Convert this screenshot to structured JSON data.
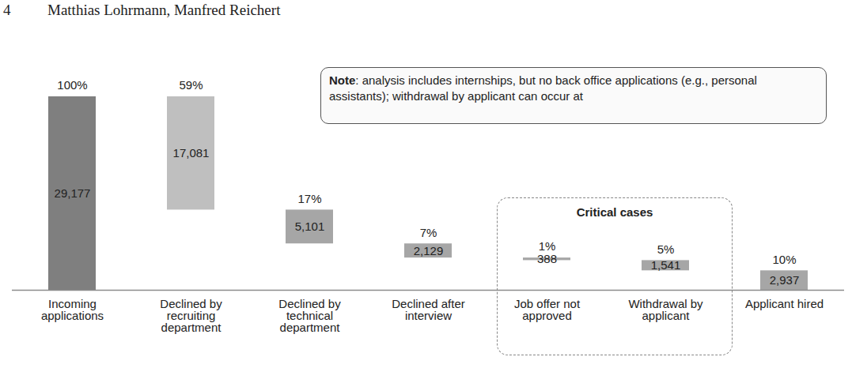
{
  "page_header": {
    "page": 4,
    "authors": "Matthias Lohrmann, Manfred Reichert"
  },
  "chart_data": {
    "type": "waterfall",
    "categories": [
      "Incoming applications",
      "Declined by recruiting department",
      "Declined by technical department",
      "Declined after interview",
      "Job offer not approved",
      "Withdrawal by applicant",
      "Applicant hired"
    ],
    "values": [
      29177,
      17081,
      5101,
      2129,
      388,
      1541,
      2937
    ],
    "value_labels": [
      "29,177",
      "17,081",
      "5,101",
      "2,129",
      "388",
      "1,541",
      "2,937"
    ],
    "share_labels": [
      "100%",
      "59%",
      "17%",
      "7%",
      "1%",
      "5%",
      "10%"
    ],
    "colors": [
      "#7f7f7f",
      "#bfbfbf",
      "#a6a6a6",
      "#a6a6a6",
      "#a6a6a6",
      "#a6a6a6",
      "#a6a6a6"
    ],
    "ylim": [
      0,
      29177
    ],
    "tick_labels": "x",
    "data_labels": true,
    "note": {
      "bold": "Note",
      "text": ": analysis includes internships, but no back office applications (e.g., personal assistants); withdrawal by applicant can occur at"
    },
    "highlight": {
      "label": "Critical cases",
      "categories": [
        "Job offer not approved",
        "Withdrawal by applicant"
      ]
    }
  }
}
